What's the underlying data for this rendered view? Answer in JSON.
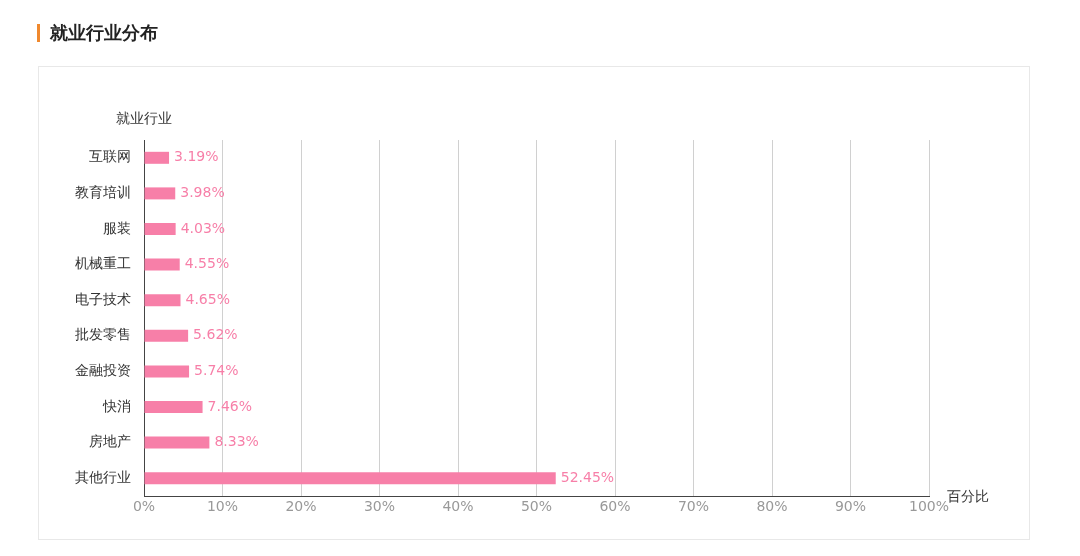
{
  "chart_data": {
    "type": "bar",
    "orientation": "horizontal",
    "title": "就业行业分布",
    "ylabel": "就业行业",
    "xlabel": "百分比",
    "categories": [
      "互联网",
      "教育培训",
      "服装",
      "机械重工",
      "电子技术",
      "批发零售",
      "金融投资",
      "快消",
      "房地产",
      "其他行业"
    ],
    "values": [
      3.19,
      3.98,
      4.03,
      4.55,
      4.65,
      5.62,
      5.74,
      7.46,
      8.33,
      52.45
    ],
    "value_labels": [
      "3.19%",
      "3.98%",
      "4.03%",
      "4.55%",
      "4.65%",
      "5.62%",
      "5.74%",
      "7.46%",
      "8.33%",
      "52.45%"
    ],
    "color": "#f77fa8",
    "xlim": [
      0,
      100
    ],
    "xticks": [
      {
        "value": 0,
        "label": "0%"
      },
      {
        "value": 10,
        "label": "10%"
      },
      {
        "value": 20,
        "label": "20%"
      },
      {
        "value": 30,
        "label": "30%"
      },
      {
        "value": 40,
        "label": "40%"
      },
      {
        "value": 50,
        "label": "50%"
      },
      {
        "value": 60,
        "label": "60%"
      },
      {
        "value": 70,
        "label": "70%"
      },
      {
        "value": 80,
        "label": "80%"
      },
      {
        "value": 90,
        "label": "90%"
      },
      {
        "value": 100,
        "label": "100%"
      }
    ],
    "grid": "x"
  }
}
